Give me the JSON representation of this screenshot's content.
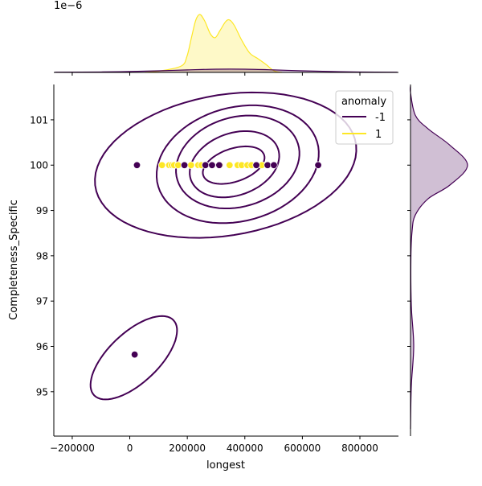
{
  "chart_data": {
    "type": "scatter",
    "subtype": "jointplot-kde",
    "xlabel": "longest",
    "ylabel": "Completeness_Specific",
    "xlim": [
      -264000,
      934000
    ],
    "ylim": [
      94.02,
      101.78
    ],
    "xticks": [
      -200000,
      0,
      200000,
      400000,
      600000,
      800000
    ],
    "xtick_labels": [
      "−200000",
      "0",
      "200000",
      "400000",
      "600000",
      "800000"
    ],
    "yticks": [
      95,
      96,
      97,
      98,
      99,
      100,
      101
    ],
    "ytick_labels": [
      "95",
      "96",
      "97",
      "98",
      "99",
      "100",
      "101"
    ],
    "top_marginal_offset_label": "1e−6",
    "grid": false,
    "legend": {
      "title": "anomaly",
      "placement": "top-right",
      "entries": [
        {
          "label": "-1",
          "color": "#440154"
        },
        {
          "label": "1",
          "color": "#fde725"
        }
      ]
    },
    "series": [
      {
        "name": "-1",
        "color": "#440154",
        "points": [
          [
            25000,
            100
          ],
          [
            190000,
            100
          ],
          [
            263000,
            100
          ],
          [
            286000,
            100
          ],
          [
            311000,
            100
          ],
          [
            440000,
            100
          ],
          [
            479000,
            100
          ],
          [
            501000,
            100
          ],
          [
            655000,
            100
          ],
          [
            17000,
            95.82
          ]
        ],
        "kde_contours": [
          {
            "center": [
              361200,
              100.0
            ],
            "u": [
              106400,
              0.213
            ],
            "v": [
              14000,
              -0.355
            ]
          },
          {
            "center": [
              364000,
              100.02
            ],
            "u": [
              154000,
              0.284
            ],
            "v": [
              22400,
              -0.674
            ]
          },
          {
            "center": [
              375200,
              100.07
            ],
            "u": [
              212800,
              0.319
            ],
            "v": [
              28000,
              -0.975
            ]
          },
          {
            "center": [
              375200,
              100.02
            ],
            "u": [
              280000,
              0.39
            ],
            "v": [
              33600,
              -1.241
            ]
          },
          {
            "center": [
              333200,
              100.0
            ],
            "u": [
              453600,
              0.443
            ],
            "v": [
              28000,
              -1.543
            ]
          },
          {
            "center": [
              14000,
              95.75
            ],
            "u": [
              137200,
              0.833
            ],
            "v": [
              61600,
              -0.39
            ]
          }
        ],
        "x_density_1e-6": {
          "x": [
            -260000,
            -100000,
            0,
            100000,
            200000,
            300000,
            400000,
            500000,
            600000,
            700000,
            800000,
            930000
          ],
          "density": [
            0.01,
            0.02,
            0.04,
            0.07,
            0.11,
            0.14,
            0.14,
            0.11,
            0.07,
            0.04,
            0.02,
            0.01
          ]
        },
        "y_density": {
          "y": [
            101.75,
            101.6,
            101.1,
            100.8,
            100.44,
            100.0,
            99.56,
            99.26,
            98.9,
            98.55,
            97.96,
            96.9,
            96.01,
            95.12,
            94.18
          ],
          "density": [
            0,
            0.0,
            0.06,
            0.22,
            0.49,
            0.71,
            0.49,
            0.22,
            0.06,
            0.02,
            0.005,
            0.01,
            0.04,
            0.01,
            0
          ]
        }
      },
      {
        "name": "1",
        "color": "#fde725",
        "points": [
          [
            112000,
            100
          ],
          [
            137000,
            100
          ],
          [
            146000,
            100
          ],
          [
            154000,
            100
          ],
          [
            168000,
            100
          ],
          [
            213000,
            100
          ],
          [
            238000,
            100
          ],
          [
            249000,
            100
          ],
          [
            314000,
            100
          ],
          [
            347000,
            100
          ],
          [
            375000,
            100
          ],
          [
            389000,
            100
          ],
          [
            409000,
            100
          ],
          [
            423000,
            100
          ],
          [
            459000,
            100
          ]
        ],
        "x_density_1e-6": {
          "x": [
            53200,
            109200,
            179200,
            198800,
            215600,
            229600,
            243600,
            260400,
            280000,
            296800,
            313600,
            333200,
            347200,
            364000,
            389200,
            417200,
            445200,
            473200,
            501200,
            529200
          ],
          "density": [
            0,
            0.07,
            0.28,
            0.7,
            1.58,
            2.28,
            2.52,
            2.24,
            1.68,
            1.51,
            1.82,
            2.21,
            2.28,
            2.03,
            1.4,
            0.84,
            0.6,
            0.35,
            0.07,
            0
          ]
        }
      }
    ]
  }
}
